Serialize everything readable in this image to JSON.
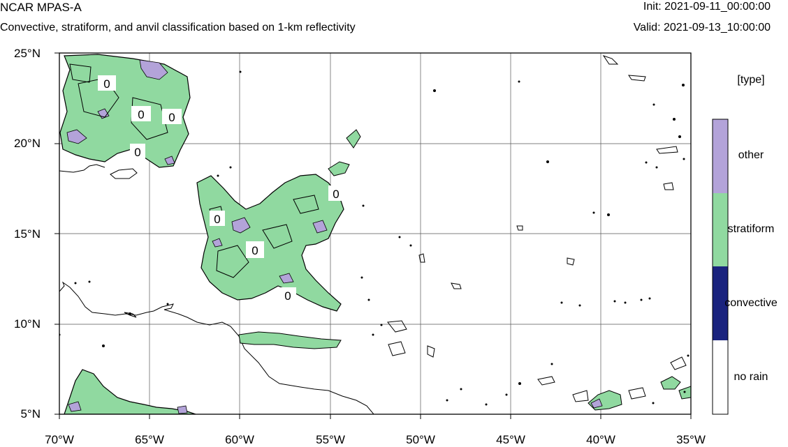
{
  "header": {
    "title": "NCAR MPAS-A",
    "subtitle": "Convective, stratiform, and anvil classification based on 1-km reflectivity",
    "init": "Init: 2021-09-11_00:00:00",
    "valid": "Valid: 2021-09-13_10:00:00"
  },
  "axes": {
    "lat_ticks": [
      "25°N",
      "20°N",
      "15°N",
      "10°N",
      "5°N"
    ],
    "lon_ticks": [
      "70°W",
      "65°W",
      "60°W",
      "55°W",
      "50°W",
      "45°W",
      "40°W",
      "35°W"
    ],
    "lat_range": [
      5,
      25
    ],
    "lon_range": [
      -70,
      -35
    ]
  },
  "contour_label": "0",
  "legend": {
    "title": "[type]",
    "categories": [
      {
        "label": "other",
        "color": "#b3a3d9"
      },
      {
        "label": "stratiform",
        "color": "#90d9a0"
      },
      {
        "label": "convective",
        "color": "#1a237e"
      },
      {
        "label": "no rain",
        "color": "#ffffff"
      }
    ]
  }
}
